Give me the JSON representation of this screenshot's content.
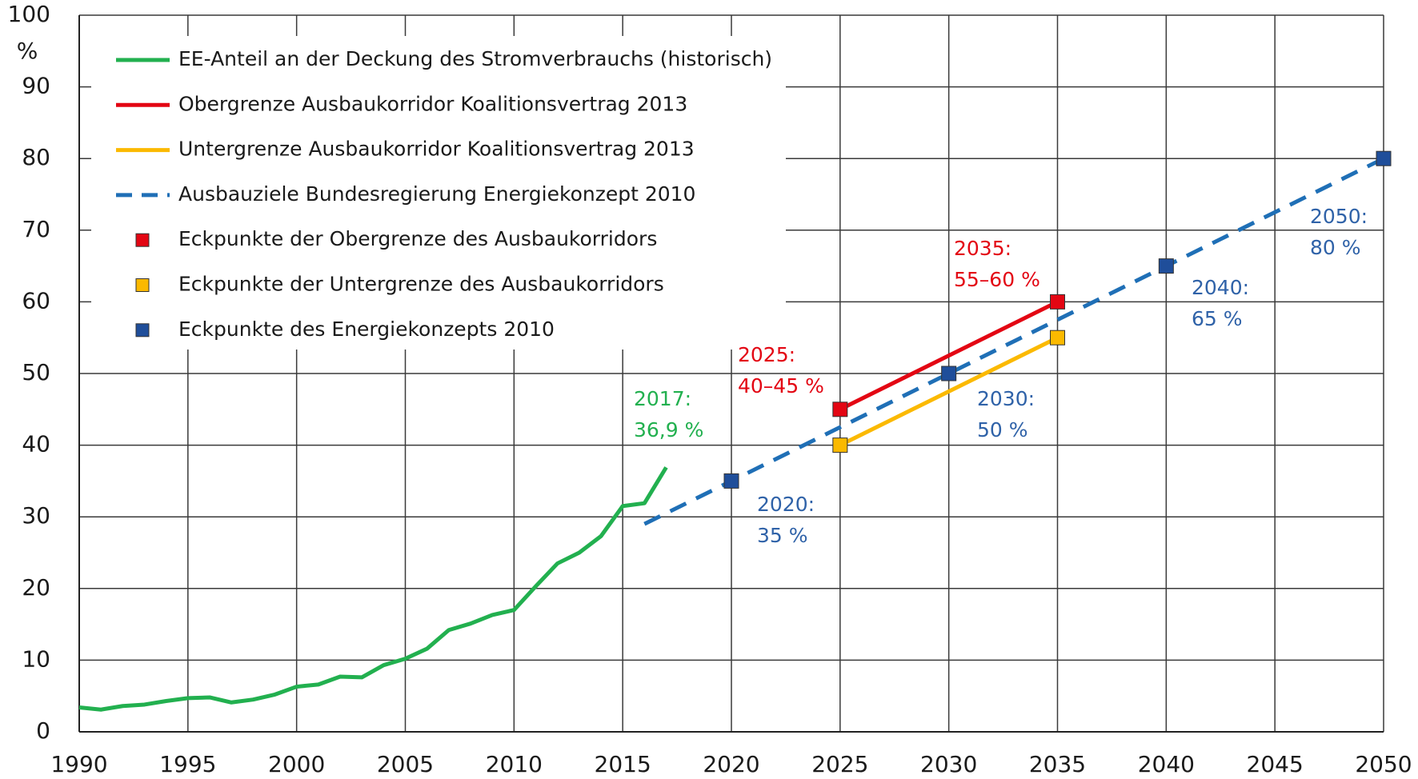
{
  "chart_data": {
    "type": "line",
    "y_unit": "%",
    "xlim": [
      1990,
      2050
    ],
    "ylim": [
      0,
      100
    ],
    "xticks": [
      1990,
      1995,
      2000,
      2005,
      2010,
      2015,
      2020,
      2025,
      2030,
      2035,
      2040,
      2045,
      2050
    ],
    "yticks": [
      0,
      10,
      20,
      30,
      40,
      50,
      60,
      70,
      80,
      90,
      100
    ],
    "grid": true,
    "legend": "upper left",
    "series": [
      {
        "name": "EE-Anteil an der Deckung des Stromverbrauchs (historisch)",
        "style": "solid",
        "color": "#22b04f",
        "x": [
          1990,
          1991,
          1992,
          1993,
          1994,
          1995,
          1996,
          1997,
          1998,
          1999,
          2000,
          2001,
          2002,
          2003,
          2004,
          2005,
          2006,
          2007,
          2008,
          2009,
          2010,
          2011,
          2012,
          2013,
          2014,
          2015,
          2016,
          2017
        ],
        "values": [
          3.4,
          3.1,
          3.6,
          3.8,
          4.3,
          4.7,
          4.8,
          4.1,
          4.5,
          5.2,
          6.3,
          6.6,
          7.7,
          7.6,
          9.3,
          10.2,
          11.6,
          14.2,
          15.1,
          16.3,
          17.0,
          20.3,
          23.5,
          25.0,
          27.3,
          31.5,
          31.9,
          36.9
        ]
      },
      {
        "name": "Obergrenze Ausbaukorridor Koalitionsvertrag 2013",
        "style": "solid",
        "color": "#e30613",
        "x": [
          2025,
          2035
        ],
        "values": [
          45,
          60
        ]
      },
      {
        "name": "Untergrenze Ausbaukorridor Koalitionsvertrag 2013",
        "style": "solid",
        "color": "#fbb900",
        "x": [
          2025,
          2035
        ],
        "values": [
          40,
          55
        ]
      },
      {
        "name": "Ausbauziele Bundesregierung Energiekonzept 2010",
        "style": "dashed",
        "color": "#1f6fb6",
        "x": [
          2016,
          2050
        ],
        "values": [
          29,
          80
        ]
      },
      {
        "name": "Eckpunkte der Obergrenze des Ausbaukorridors",
        "style": "markers",
        "color": "#e30613",
        "x": [
          2025,
          2035
        ],
        "values": [
          45,
          60
        ]
      },
      {
        "name": "Eckpunkte der Untergrenze des Ausbaukorridors",
        "style": "markers",
        "color": "#fbb900",
        "x": [
          2025,
          2035
        ],
        "values": [
          40,
          55
        ]
      },
      {
        "name": "Eckpunkte des Energiekonzepts 2010",
        "style": "markers",
        "color": "#1f4e9a",
        "x": [
          2020,
          2030,
          2040,
          2050
        ],
        "values": [
          35,
          50,
          65,
          80
        ]
      }
    ],
    "annotations": [
      {
        "lines": [
          "2017:",
          "36,9 %"
        ],
        "color": "#22b04f"
      },
      {
        "lines": [
          "2025:",
          "40–45 %"
        ],
        "color": "#e30613"
      },
      {
        "lines": [
          "2035:",
          "55–60 %"
        ],
        "color": "#e30613"
      },
      {
        "lines": [
          "2020:",
          "35 %"
        ],
        "color": "#2f62a8"
      },
      {
        "lines": [
          "2030:",
          "50 %"
        ],
        "color": "#2f62a8"
      },
      {
        "lines": [
          "2040:",
          "65 %"
        ],
        "color": "#2f62a8"
      },
      {
        "lines": [
          "2050:",
          "80 %"
        ],
        "color": "#2f62a8"
      }
    ]
  }
}
